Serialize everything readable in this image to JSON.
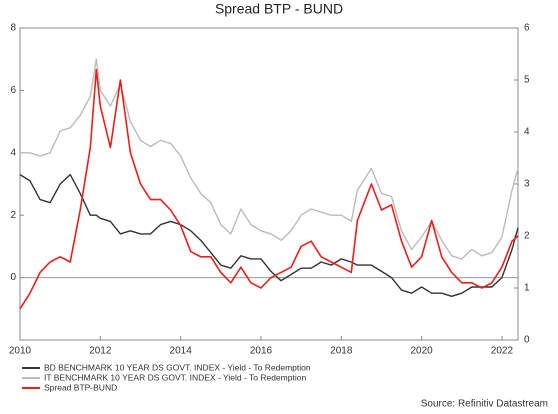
{
  "chart_data": {
    "type": "line",
    "title": "Spread BTP - BUND",
    "x": [
      2010,
      2010.25,
      2010.5,
      2010.75,
      2011,
      2011.25,
      2011.5,
      2011.75,
      2011.9,
      2012,
      2012.25,
      2012.5,
      2012.75,
      2013,
      2013.25,
      2013.5,
      2013.75,
      2014,
      2014.25,
      2014.5,
      2014.75,
      2015,
      2015.25,
      2015.5,
      2015.75,
      2016,
      2016.25,
      2016.5,
      2016.75,
      2017,
      2017.25,
      2017.5,
      2017.75,
      2018,
      2018.25,
      2018.4,
      2018.75,
      2019,
      2019.25,
      2019.5,
      2019.75,
      2020,
      2020.25,
      2020.5,
      2020.75,
      2021,
      2021.25,
      2021.5,
      2021.75,
      2022,
      2022.25,
      2022.4
    ],
    "series": [
      {
        "name": "BD BENCHMARK 10 YEAR DS GOVT. INDEX - Yield - To Redemption",
        "color": "#333333",
        "axis": "y",
        "values": [
          3.3,
          3.1,
          2.5,
          2.4,
          3.0,
          3.3,
          2.7,
          2.0,
          2.0,
          1.9,
          1.8,
          1.4,
          1.5,
          1.4,
          1.4,
          1.7,
          1.8,
          1.7,
          1.5,
          1.2,
          0.8,
          0.4,
          0.3,
          0.7,
          0.6,
          0.6,
          0.2,
          -0.1,
          0.1,
          0.3,
          0.3,
          0.5,
          0.4,
          0.6,
          0.5,
          0.4,
          0.4,
          0.2,
          0.0,
          -0.4,
          -0.5,
          -0.3,
          -0.5,
          -0.5,
          -0.6,
          -0.5,
          -0.3,
          -0.3,
          -0.3,
          0.0,
          0.9,
          1.6
        ]
      },
      {
        "name": "IT BENCHMARK 10 YEAR DS GOVT. INDEX - Yield - To Redemption",
        "color": "#bbbbbb",
        "axis": "y",
        "values": [
          4.0,
          4.0,
          3.9,
          4.0,
          4.7,
          4.8,
          5.2,
          5.8,
          7.0,
          6.0,
          5.5,
          6.2,
          5.0,
          4.4,
          4.2,
          4.4,
          4.3,
          3.9,
          3.2,
          2.7,
          2.4,
          1.7,
          1.4,
          2.2,
          1.7,
          1.5,
          1.4,
          1.2,
          1.5,
          2.0,
          2.2,
          2.1,
          2.0,
          2.0,
          1.8,
          2.8,
          3.5,
          2.7,
          2.6,
          1.5,
          0.9,
          1.3,
          1.8,
          1.2,
          0.7,
          0.6,
          0.9,
          0.7,
          0.8,
          1.3,
          2.8,
          3.5
        ]
      },
      {
        "name": "Spread BTP-BUND",
        "color": "#e8201c",
        "axis": "y2",
        "values": [
          0.6,
          0.9,
          1.3,
          1.5,
          1.6,
          1.5,
          2.5,
          3.7,
          5.2,
          4.5,
          3.7,
          5.0,
          3.6,
          3.0,
          2.7,
          2.7,
          2.5,
          2.2,
          1.7,
          1.6,
          1.6,
          1.3,
          1.1,
          1.4,
          1.1,
          1.0,
          1.2,
          1.3,
          1.4,
          1.8,
          1.9,
          1.6,
          1.5,
          1.4,
          1.3,
          2.3,
          3.0,
          2.5,
          2.6,
          1.9,
          1.4,
          1.6,
          2.3,
          1.6,
          1.3,
          1.1,
          1.1,
          1.0,
          1.1,
          1.4,
          1.9,
          2.0
        ]
      }
    ],
    "xlim": [
      2010,
      2022.4
    ],
    "xticks": [
      2010,
      2012,
      2014,
      2016,
      2018,
      2020,
      2022
    ],
    "ylim": [
      -2,
      8
    ],
    "yticks": [
      0,
      2,
      4,
      6,
      8
    ],
    "y2lim": [
      0,
      6
    ],
    "y2ticks": [
      0,
      1,
      2,
      3,
      4,
      5,
      6
    ],
    "source": "Source: Refinitiv Datastream"
  }
}
